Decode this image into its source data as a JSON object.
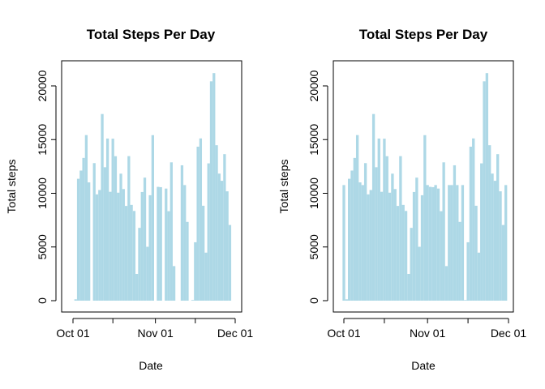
{
  "chart_data": [
    {
      "type": "bar",
      "title": "Total Steps Per Day",
      "xlabel": "Date",
      "ylabel": "Total steps",
      "bar_color": "#add8e6",
      "ylim": [
        0,
        21500
      ],
      "x_start": "2012-10-01",
      "x_end": "2012-12-01",
      "x_ticks": [
        "Oct 01",
        "Nov 01",
        "Dec 01"
      ],
      "y_ticks": [
        "0",
        "5000",
        "10000",
        "15000",
        "20000"
      ],
      "grid": false,
      "x": [
        "2012-10-01",
        "2012-10-02",
        "2012-10-03",
        "2012-10-04",
        "2012-10-05",
        "2012-10-06",
        "2012-10-07",
        "2012-10-08",
        "2012-10-09",
        "2012-10-10",
        "2012-10-11",
        "2012-10-12",
        "2012-10-13",
        "2012-10-14",
        "2012-10-15",
        "2012-10-16",
        "2012-10-17",
        "2012-10-18",
        "2012-10-19",
        "2012-10-20",
        "2012-10-21",
        "2012-10-22",
        "2012-10-23",
        "2012-10-24",
        "2012-10-25",
        "2012-10-26",
        "2012-10-27",
        "2012-10-28",
        "2012-10-29",
        "2012-10-30",
        "2012-10-31",
        "2012-11-01",
        "2012-11-02",
        "2012-11-03",
        "2012-11-04",
        "2012-11-05",
        "2012-11-06",
        "2012-11-07",
        "2012-11-08",
        "2012-11-09",
        "2012-11-10",
        "2012-11-11",
        "2012-11-12",
        "2012-11-13",
        "2012-11-14",
        "2012-11-15",
        "2012-11-16",
        "2012-11-17",
        "2012-11-18",
        "2012-11-19",
        "2012-11-20",
        "2012-11-21",
        "2012-11-22",
        "2012-11-23",
        "2012-11-24",
        "2012-11-25",
        "2012-11-26",
        "2012-11-27",
        "2012-11-28",
        "2012-11-29",
        "2012-11-30"
      ],
      "values": [
        0,
        126,
        11352,
        12116,
        13294,
        15420,
        11015,
        0,
        12811,
        9900,
        10304,
        17382,
        12426,
        15098,
        10139,
        15084,
        13452,
        10056,
        11829,
        10395,
        8821,
        13460,
        8918,
        8355,
        2492,
        6778,
        10119,
        11458,
        5018,
        9819,
        15414,
        0,
        10600,
        10571,
        0,
        10439,
        8334,
        12883,
        3219,
        0,
        0,
        12608,
        10765,
        7336,
        0,
        41,
        5441,
        14339,
        15110,
        8841,
        4472,
        12787,
        20427,
        21194,
        14478,
        11834,
        11162,
        13646,
        10183,
        7047,
        0
      ]
    },
    {
      "type": "bar",
      "title": "Total Steps Per Day",
      "xlabel": "Date",
      "ylabel": "Total steps",
      "bar_color": "#add8e6",
      "ylim": [
        0,
        21500
      ],
      "x_start": "2012-10-01",
      "x_end": "2012-12-01",
      "x_ticks": [
        "Oct 01",
        "Nov 01",
        "Dec 01"
      ],
      "y_ticks": [
        "0",
        "5000",
        "10000",
        "15000",
        "20000"
      ],
      "grid": false,
      "x": [
        "2012-10-01",
        "2012-10-02",
        "2012-10-03",
        "2012-10-04",
        "2012-10-05",
        "2012-10-06",
        "2012-10-07",
        "2012-10-08",
        "2012-10-09",
        "2012-10-10",
        "2012-10-11",
        "2012-10-12",
        "2012-10-13",
        "2012-10-14",
        "2012-10-15",
        "2012-10-16",
        "2012-10-17",
        "2012-10-18",
        "2012-10-19",
        "2012-10-20",
        "2012-10-21",
        "2012-10-22",
        "2012-10-23",
        "2012-10-24",
        "2012-10-25",
        "2012-10-26",
        "2012-10-27",
        "2012-10-28",
        "2012-10-29",
        "2012-10-30",
        "2012-10-31",
        "2012-11-01",
        "2012-11-02",
        "2012-11-03",
        "2012-11-04",
        "2012-11-05",
        "2012-11-06",
        "2012-11-07",
        "2012-11-08",
        "2012-11-09",
        "2012-11-10",
        "2012-11-11",
        "2012-11-12",
        "2012-11-13",
        "2012-11-14",
        "2012-11-15",
        "2012-11-16",
        "2012-11-17",
        "2012-11-18",
        "2012-11-19",
        "2012-11-20",
        "2012-11-21",
        "2012-11-22",
        "2012-11-23",
        "2012-11-24",
        "2012-11-25",
        "2012-11-26",
        "2012-11-27",
        "2012-11-28",
        "2012-11-29",
        "2012-11-30"
      ],
      "values": [
        10766,
        126,
        11352,
        12116,
        13294,
        15420,
        11015,
        10766,
        12811,
        9900,
        10304,
        17382,
        12426,
        15098,
        10139,
        15084,
        13452,
        10056,
        11829,
        10395,
        8821,
        13460,
        8918,
        8355,
        2492,
        6778,
        10119,
        11458,
        5018,
        9819,
        15414,
        10766,
        10600,
        10571,
        10766,
        10439,
        8334,
        12883,
        3219,
        10766,
        10766,
        12608,
        10765,
        7336,
        10766,
        41,
        5441,
        14339,
        15110,
        8841,
        4472,
        12787,
        20427,
        21194,
        14478,
        11834,
        11162,
        13646,
        10183,
        7047,
        10766
      ]
    }
  ]
}
